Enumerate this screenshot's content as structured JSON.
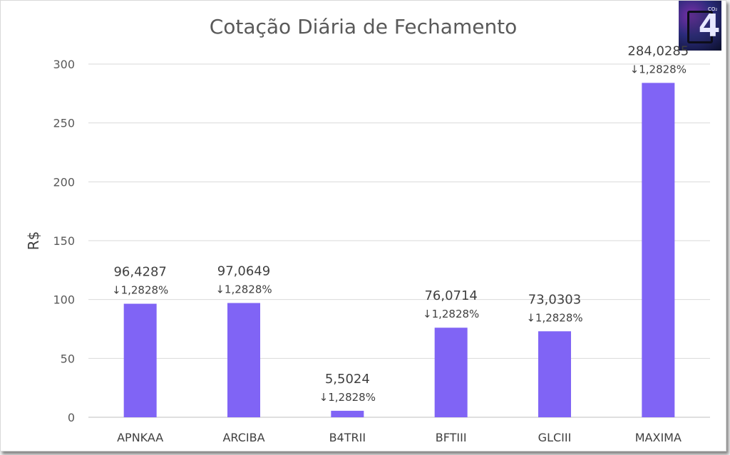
{
  "chart_data": {
    "type": "bar",
    "title": "Cotação Diária de Fechamento",
    "xlabel": "",
    "ylabel": "R$",
    "ylim": [
      0,
      300
    ],
    "yticks": [
      0,
      50,
      100,
      150,
      200,
      250,
      300
    ],
    "grid": true,
    "categories": [
      "APNKAA",
      "ARCIBA",
      "B4TRII",
      "BFTIII",
      "GLCIII",
      "MAXIMA"
    ],
    "values": [
      96.4287,
      97.0649,
      5.5024,
      76.0714,
      73.0303,
      284.0285
    ],
    "value_labels": [
      "96,4287",
      "97,0649",
      "5,5024",
      "76,0714",
      "73,0303",
      "284,0285"
    ],
    "change_labels": [
      "↓1,2828%",
      "↓1,2828%",
      "↓1,2828%",
      "↓1,2828%",
      "↓1,2828%",
      "↓1,2828%"
    ],
    "bar_color": "#8064f5",
    "gridline_color": "#d9d9d9"
  },
  "logo": {
    "text": "4",
    "small_text": "CO₂"
  }
}
